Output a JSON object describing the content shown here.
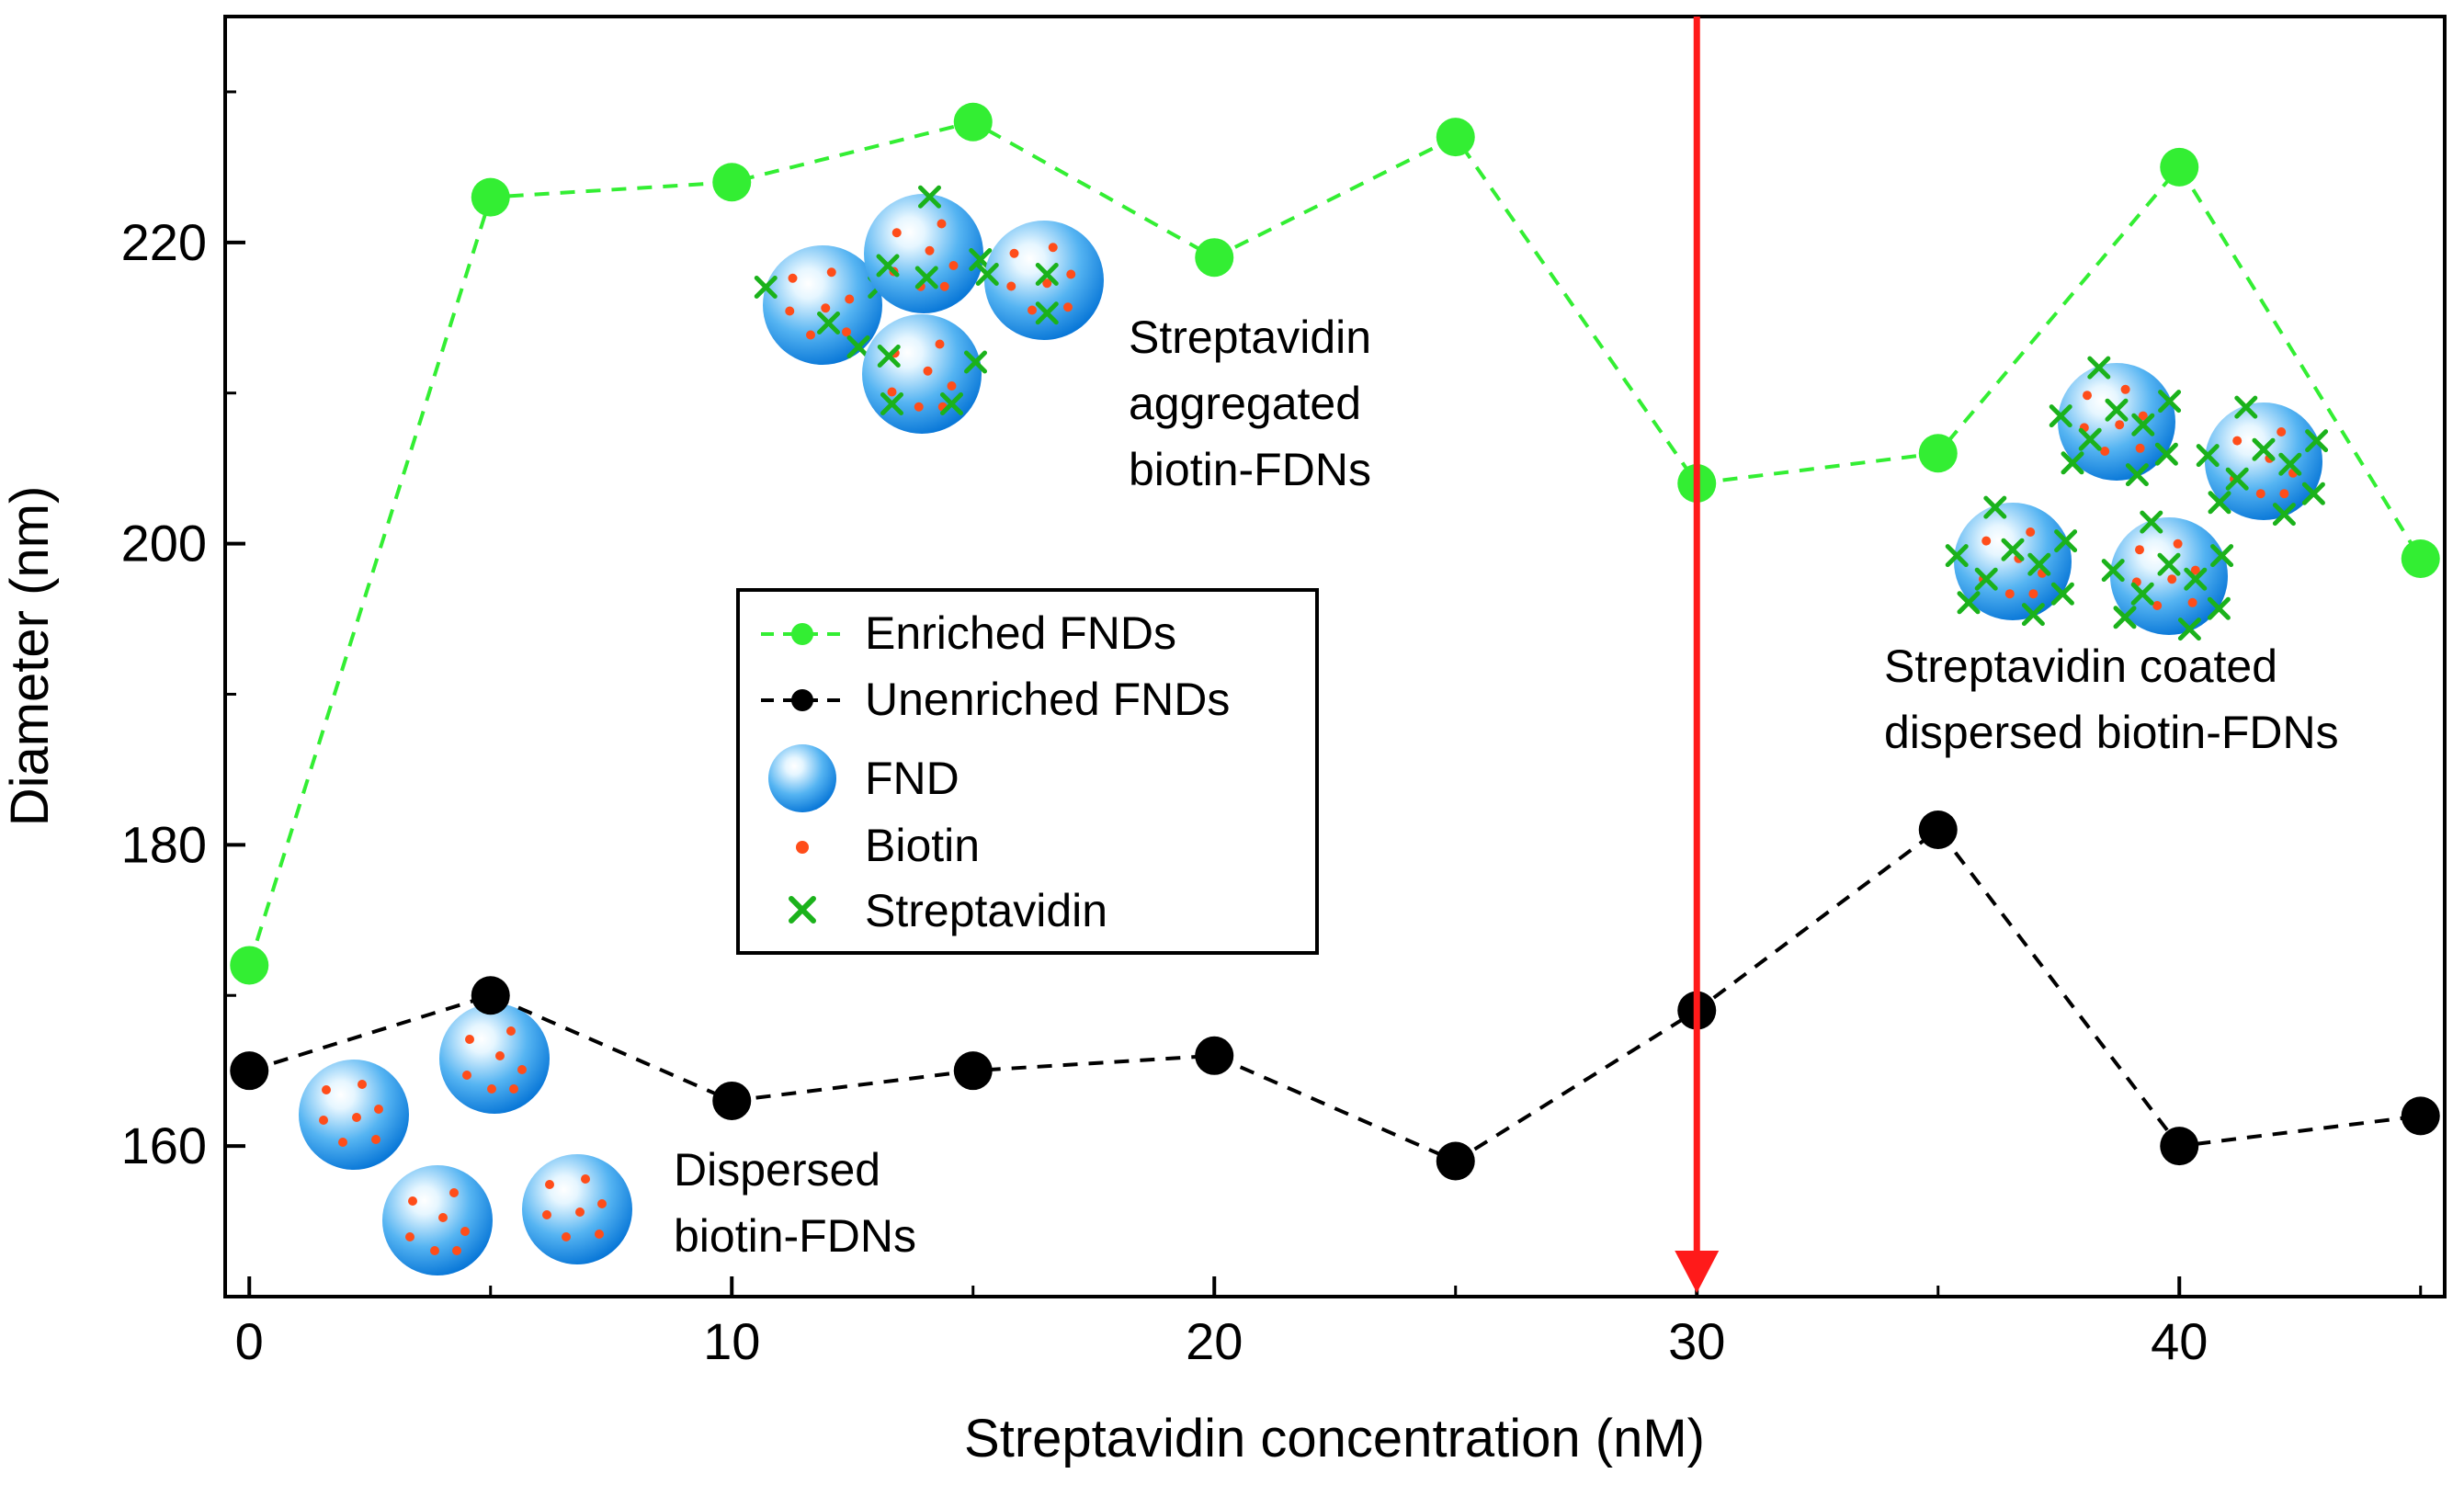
{
  "chart_data": {
    "type": "line",
    "xlabel": "Streptavidin concentration (nM)",
    "ylabel": "Diameter (nm)",
    "xlim": [
      -0.5,
      45.5
    ],
    "ylim": [
      150,
      235
    ],
    "grid": false,
    "x_ticks": [
      0,
      10,
      20,
      30,
      40
    ],
    "x_tick_labels": [
      "0",
      "10",
      "20",
      "30",
      "40"
    ],
    "y_ticks": [
      160,
      180,
      200,
      220
    ],
    "y_tick_labels": [
      "160",
      "180",
      "200",
      "220"
    ],
    "series": [
      {
        "name": "Enriched FNDs",
        "color": "#33ee33",
        "line_style": "dashed",
        "x": [
          0,
          5,
          10,
          15,
          20,
          25,
          30,
          35,
          40,
          45
        ],
        "values": [
          172,
          223,
          224,
          228,
          219,
          227,
          204,
          206,
          225,
          199
        ]
      },
      {
        "name": "Unenriched FNDs",
        "color": "#000000",
        "line_style": "dashed",
        "x": [
          0,
          5,
          10,
          15,
          20,
          25,
          30,
          35,
          40,
          45
        ],
        "values": [
          165,
          170,
          163,
          165,
          166,
          159,
          169,
          181,
          160,
          162
        ]
      }
    ],
    "marker_line": {
      "x": 30,
      "color": "#ff1a1a"
    },
    "legend": {
      "position": "center-left",
      "entries": [
        {
          "label": "Enriched FNDs",
          "symbol": "dashed-green-dot"
        },
        {
          "label": "Unenriched FNDs",
          "symbol": "dashed-black-dot"
        },
        {
          "label": "FND",
          "symbol": "blue-sphere"
        },
        {
          "label": "Biotin",
          "symbol": "red-dot"
        },
        {
          "label": "Streptavidin",
          "symbol": "green-cross"
        }
      ]
    },
    "annotations": [
      {
        "lines": [
          "Streptavidin",
          "aggregated",
          "biotin-FDNs"
        ]
      },
      {
        "lines": [
          "Streptavidin coated",
          "dispersed biotin-FDNs"
        ]
      },
      {
        "lines": [
          "Dispersed",
          "biotin-FDNs"
        ]
      }
    ],
    "colors": {
      "sphere_light": "#e6f6ff",
      "sphere_mid": "#55b4f2",
      "sphere_dark": "#0a78d8",
      "biotin": "#ff4d1a",
      "streptavidin": "#1bb21b",
      "arrow": "#ff1a1a"
    }
  }
}
